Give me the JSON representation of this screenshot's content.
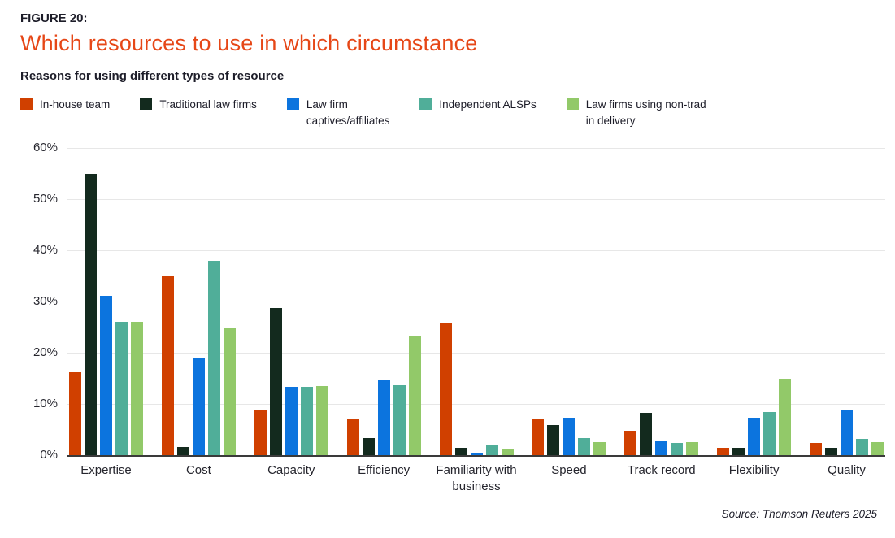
{
  "header": {
    "figure_label": "FIGURE 20:",
    "title": "Which resources to use in which circumstance",
    "subtitle": "Reasons for using different types of resource"
  },
  "source_note": "Source: Thomson Reuters 2025",
  "colors": {
    "title_accent": "#E64717",
    "axis_line": "#3A3A3A",
    "gridline": "#E7E7E7",
    "text": "#1F1F30"
  },
  "chart_data": {
    "type": "bar",
    "title": "Which resources to use in which circumstance",
    "subtitle": "Reasons for using different types of resource",
    "xlabel": "",
    "ylabel": "",
    "ylim": [
      0,
      60
    ],
    "yticks": [
      0,
      10,
      20,
      30,
      40,
      50,
      60
    ],
    "ytick_labels": [
      "0%",
      "10%",
      "20%",
      "30%",
      "40%",
      "50%",
      "60%"
    ],
    "grid": true,
    "legend_position": "top",
    "categories": [
      "Expertise",
      "Cost",
      "Capacity",
      "Efficiency",
      "Familiarity with business",
      "Speed",
      "Track record",
      "Flexibility",
      "Quality"
    ],
    "series": [
      {
        "name": "In-house team",
        "legend_label": "In-house team",
        "color": "#D04000",
        "values": [
          16.2,
          35.1,
          8.7,
          7.0,
          25.7,
          7.0,
          4.8,
          1.4,
          2.4
        ]
      },
      {
        "name": "Traditional law firms",
        "legend_label": "Traditional law firms",
        "color": "#132A1E",
        "values": [
          55.0,
          1.6,
          28.7,
          3.3,
          1.4,
          5.9,
          8.2,
          1.4,
          1.4
        ]
      },
      {
        "name": "Law firm captives/affiliates",
        "legend_label": "Law firm\ncaptives/affiliates",
        "color": "#0C74DE",
        "values": [
          31.2,
          19.0,
          13.4,
          14.6,
          0.4,
          7.4,
          2.8,
          7.4,
          8.7
        ]
      },
      {
        "name": "Independent ALSPs",
        "legend_label": "Independent ALSPs",
        "color": "#50AE99",
        "values": [
          26.1,
          38.0,
          13.4,
          13.6,
          2.1,
          3.3,
          2.4,
          8.4,
          3.2
        ]
      },
      {
        "name": "Law firms using non-trad in delivery",
        "legend_label": "Law firms using non-trad\nin delivery",
        "color": "#92C969",
        "values": [
          26.1,
          24.9,
          13.5,
          23.4,
          1.3,
          2.6,
          2.5,
          14.9,
          2.6
        ]
      }
    ]
  }
}
